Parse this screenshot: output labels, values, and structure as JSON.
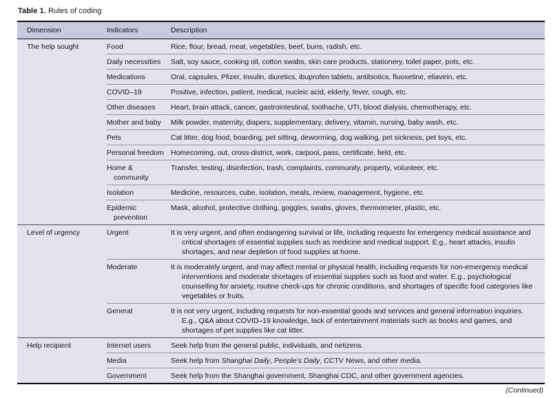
{
  "title": {
    "label": "Table 1.",
    "caption": "Rules of coding"
  },
  "table": {
    "columns": [
      "Dimension",
      "Indicators",
      "Description"
    ],
    "colors": {
      "header_bg": "#c8c8de",
      "body_bg": "#e3e3ee",
      "dark_border": "#0a0a14",
      "row_separator": "#9292a6",
      "group_separator": "#4e4e5c"
    },
    "groups": [
      {
        "dimension": "The help sought",
        "rows": [
          {
            "indicator": "Food",
            "description": "Rice, flour, bread, meat, vegetables, beef, buns, radish, etc."
          },
          {
            "indicator": "Daily necessities",
            "description": "Salt, soy sauce, cooking oil, cotton swabs, skin care products, stationery, toilet paper, pots, etc."
          },
          {
            "indicator": "Medications",
            "description": "Oral, capsules, Pfizer, Insulin, diuretics, ibuprofen tablets, antibiotics, fluoxetine, eliavirin, etc."
          },
          {
            "indicator": "COVID–19",
            "description": "Positive, infection, patient, medical, nucleic acid, elderly, fever, cough, etc."
          },
          {
            "indicator": "Other diseases",
            "description": "Heart, brain attack, cancer, gastrointestinal, toothache, UTI, blood dialysis, chemotherapy, etc."
          },
          {
            "indicator": "Mother and baby",
            "description": "Milk powder, maternity, diapers, supplementary, delivery, vitamin, nursing, baby wash, etc."
          },
          {
            "indicator": "Pets",
            "description": "Cat litter, dog food, boarding, pet sitting, deworming, dog walking, pet sickness, pet toys, etc."
          },
          {
            "indicator": "Personal freedom",
            "description": "Homecoming, out, cross-district, work, carpool, pass, certificate, field, etc."
          },
          {
            "indicator": "Home &\ncommunity",
            "description": "Transfer, testing, disinfection, trash, complaints, community, property, volunteer, etc."
          },
          {
            "indicator": "Isolation",
            "description": "Medicine, resources, cube, isolation, meals, review, management, hygiene, etc."
          },
          {
            "indicator": "Epidemic\nprevention",
            "description": "Mask, alcohol, protective clothing, goggles, swabs, gloves, thermometer, plastic, etc."
          }
        ]
      },
      {
        "dimension": "Level of urgency",
        "rows": [
          {
            "indicator": "Urgent",
            "description": "It is very urgent, and often endangering survival or life, including requests for emergency medical assistance and critical shortages of essential supplies such as medicine and medical support. E.g., heart attacks, insulin shortages, and near depletion of food supplies at home."
          },
          {
            "indicator": "Moderate",
            "description": "It is moderately urgent, and may affect mental or physical health, including requests for non-emergency medical interventions and moderate shortages of essential supplies such as food and water. E.g., psychological counselling for anxiety, routine check-ups for chronic conditions, and shortages of specific food categories like vegetables or fruits."
          },
          {
            "indicator": "General",
            "description": "It is not very urgent, including requests for non-essential goods and services and general information inquiries. E.g., Q&A about COVID–19 knowledge, lack of entertainment materials such as books and games, and shortages of pet supplies like cat litter."
          }
        ]
      },
      {
        "dimension": "Help recipient",
        "rows": [
          {
            "indicator": "Internet users",
            "description": "Seek help from the general public, individuals, and netizens."
          },
          {
            "indicator": "Media",
            "description_segments": [
              {
                "text": "Seek help from "
              },
              {
                "text": "Shanghai Daily",
                "italic": true
              },
              {
                "text": ", "
              },
              {
                "text": "People’s Daily",
                "italic": true
              },
              {
                "text": ", CCTV News, and other media."
              }
            ]
          },
          {
            "indicator": "Government",
            "description": "Seek help from the Shanghai government, Shanghai CDC, and other government agencies."
          }
        ]
      }
    ]
  },
  "footer": {
    "continued": "(Continued)"
  }
}
